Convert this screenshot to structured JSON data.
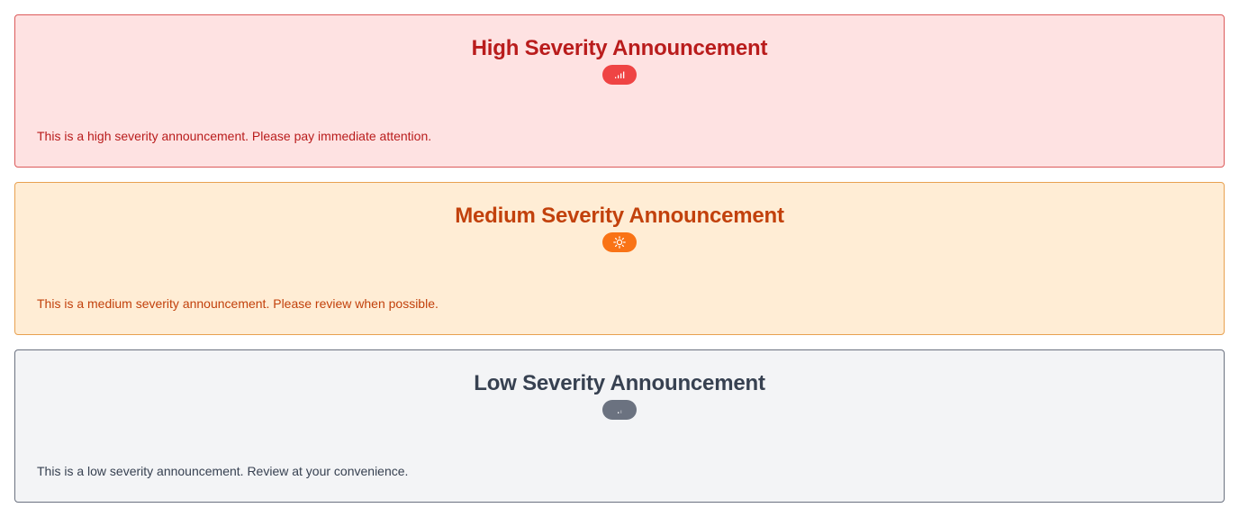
{
  "announcements": [
    {
      "severity": "high",
      "title": "High Severity Announcement",
      "icon": "signal-bars-high-icon",
      "message": "This is a high severity announcement. Please pay immediate attention.",
      "colors": {
        "background": "#fee2e2",
        "border": "#dc5a5a",
        "text": "#b91c1c",
        "badge": "#ef4444"
      }
    },
    {
      "severity": "medium",
      "title": "Medium Severity Announcement",
      "icon": "sun-icon",
      "message": "This is a medium severity announcement. Please review when possible.",
      "colors": {
        "background": "#ffedd5",
        "border": "#e8a150",
        "text": "#c2410c",
        "badge": "#f97316"
      }
    },
    {
      "severity": "low",
      "title": "Low Severity Announcement",
      "icon": "signal-bars-low-icon",
      "message": "This is a low severity announcement. Review at your convenience.",
      "colors": {
        "background": "#f3f4f6",
        "border": "#6b7280",
        "text": "#374151",
        "badge": "#6b7280"
      }
    }
  ]
}
